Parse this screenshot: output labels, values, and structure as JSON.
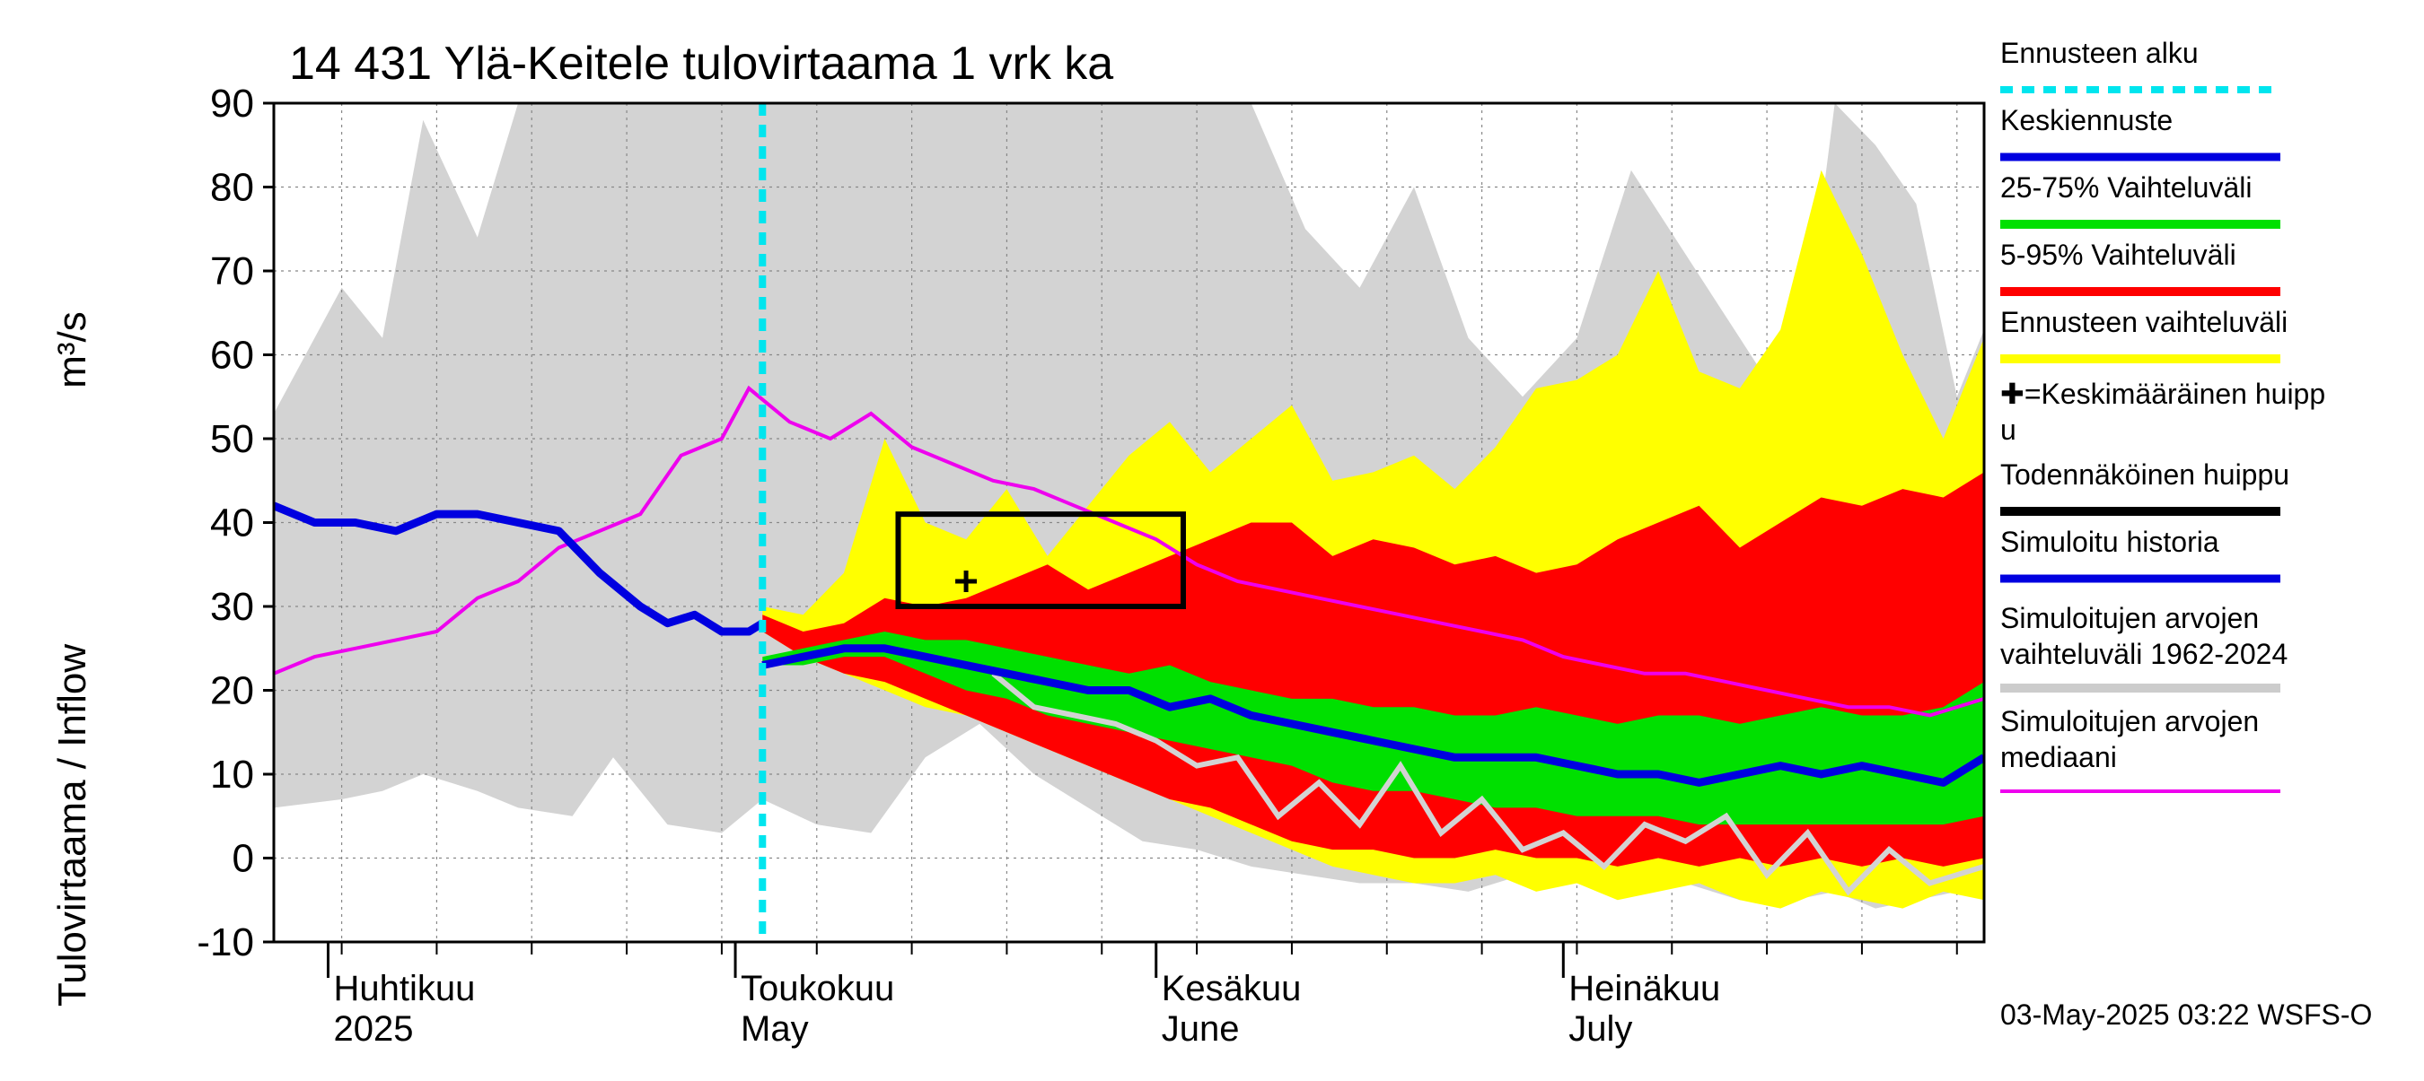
{
  "chart_data": {
    "type": "area",
    "title": "14 431 Ylä-Keitele tulovirtaama 1 vrk ka",
    "ylabel": "Tulovirtaama / Inflow",
    "yunit": "m³/s",
    "ylim": [
      -10,
      90
    ],
    "yticks": [
      -10,
      0,
      10,
      20,
      30,
      40,
      50,
      60,
      70,
      80,
      90
    ],
    "xlim": [
      "2025-03-28",
      "2025-08-01"
    ],
    "month_labels": [
      {
        "fi": "Huhtikuu",
        "en": "2025",
        "date": "2025-04-01"
      },
      {
        "fi": "Toukokuu",
        "en": "May",
        "date": "2025-05-01"
      },
      {
        "fi": "Kesäkuu",
        "en": "June",
        "date": "2025-06-01"
      },
      {
        "fi": "Heinäkuu",
        "en": "July",
        "date": "2025-07-01"
      }
    ],
    "forecast_start": "2025-05-03",
    "grid": true,
    "legend_placement": "right",
    "footer": "03-May-2025 03:22 WSFS-O",
    "legend": [
      {
        "label": "Ennusteen alku",
        "color": "#00e5ee",
        "style": "dashed"
      },
      {
        "label": "Keskiennuste",
        "color": "#0000e0",
        "style": "line"
      },
      {
        "label": "25-75% Vaihteluväli",
        "color": "#00e000",
        "style": "line"
      },
      {
        "label": "5-95% Vaihteluväli",
        "color": "#ff0000",
        "style": "line"
      },
      {
        "label": "Ennusteen vaihteluväli",
        "color": "#ffff00",
        "style": "line"
      },
      {
        "label": "✚=Keskimääräinen huipp",
        "label2": "u",
        "color": "#000000",
        "style": "none"
      },
      {
        "label": "Todennäköinen huippu",
        "color": "#000000",
        "style": "line"
      },
      {
        "label": "Simuloitu historia",
        "color": "#0000e0",
        "style": "line"
      },
      {
        "label": "Simuloitujen arvojen",
        "label2": "vaihteluväli 1962-2024",
        "color": "#cccccc",
        "style": "line"
      },
      {
        "label": "Simuloitujen arvojen",
        "label2": "mediaani",
        "color": "#ee00ee",
        "style": "line"
      }
    ],
    "colors": {
      "hist_range": "#d3d3d3",
      "forecast_range": "#ffff00",
      "p5_95": "#ff0000",
      "p25_75": "#00e000",
      "median_sim": "#ee00ee",
      "simulated_history": "#0000e0",
      "mean_forecast": "#0000e0",
      "forecast_start": "#00e5ee",
      "member_line": "#d3d3d3"
    },
    "series": [
      {
        "name": "Simuloitujen arvojen vaihteluväli 1962-2024",
        "x": [
          "2025-03-28",
          "2025-04-02",
          "2025-04-05",
          "2025-04-08",
          "2025-04-12",
          "2025-04-15",
          "2025-04-19",
          "2025-04-22",
          "2025-04-26",
          "2025-04-30",
          "2025-05-03",
          "2025-05-07",
          "2025-05-11",
          "2025-05-15",
          "2025-05-19",
          "2025-05-23",
          "2025-05-27",
          "2025-05-31",
          "2025-06-04",
          "2025-06-08",
          "2025-06-12",
          "2025-06-16",
          "2025-06-20",
          "2025-06-24",
          "2025-06-28",
          "2025-07-02",
          "2025-07-06",
          "2025-07-10",
          "2025-07-14",
          "2025-07-18",
          "2025-07-21",
          "2025-07-24",
          "2025-07-27",
          "2025-07-30",
          "2025-08-01"
        ],
        "low": [
          6,
          7,
          8,
          10,
          8,
          6,
          5,
          12,
          4,
          3,
          7,
          4,
          3,
          12,
          16,
          10,
          6,
          2,
          1,
          -1,
          -2,
          -3,
          -3,
          -4,
          -2,
          -3,
          -4,
          -3,
          -5,
          -5,
          -4,
          -6,
          -5,
          -4,
          -5
        ],
        "high": [
          53,
          68,
          62,
          88,
          74,
          90,
          90,
          90,
          90,
          90,
          90,
          90,
          90,
          90,
          90,
          90,
          90,
          90,
          90,
          90,
          75,
          68,
          80,
          62,
          55,
          62,
          82,
          72,
          62,
          52,
          90,
          85,
          78,
          55,
          63
        ]
      },
      {
        "name": "Ennusteen vaihteluväli",
        "x": [
          "2025-05-03",
          "2025-05-06",
          "2025-05-09",
          "2025-05-12",
          "2025-05-15",
          "2025-05-18",
          "2025-05-21",
          "2025-05-24",
          "2025-05-27",
          "2025-05-30",
          "2025-06-02",
          "2025-06-05",
          "2025-06-08",
          "2025-06-11",
          "2025-06-14",
          "2025-06-17",
          "2025-06-20",
          "2025-06-23",
          "2025-06-26",
          "2025-06-29",
          "2025-07-02",
          "2025-07-05",
          "2025-07-08",
          "2025-07-11",
          "2025-07-14",
          "2025-07-17",
          "2025-07-20",
          "2025-07-23",
          "2025-07-26",
          "2025-07-29",
          "2025-08-01"
        ],
        "low": [
          27,
          24,
          22,
          20,
          18,
          17,
          15,
          13,
          11,
          9,
          7,
          5,
          3,
          1,
          -1,
          -2,
          -3,
          -3,
          -2,
          -4,
          -3,
          -5,
          -4,
          -3,
          -5,
          -6,
          -4,
          -5,
          -6,
          -4,
          -5
        ],
        "high": [
          30,
          29,
          34,
          50,
          40,
          38,
          44,
          36,
          42,
          48,
          52,
          46,
          50,
          54,
          45,
          46,
          48,
          44,
          49,
          56,
          57,
          60,
          70,
          58,
          56,
          63,
          82,
          72,
          60,
          50,
          62
        ]
      },
      {
        "name": "5-95% Vaihteluväli",
        "x": [
          "2025-05-03",
          "2025-05-06",
          "2025-05-09",
          "2025-05-12",
          "2025-05-15",
          "2025-05-18",
          "2025-05-21",
          "2025-05-24",
          "2025-05-27",
          "2025-05-30",
          "2025-06-02",
          "2025-06-05",
          "2025-06-08",
          "2025-06-11",
          "2025-06-14",
          "2025-06-17",
          "2025-06-20",
          "2025-06-23",
          "2025-06-26",
          "2025-06-29",
          "2025-07-02",
          "2025-07-05",
          "2025-07-08",
          "2025-07-11",
          "2025-07-14",
          "2025-07-17",
          "2025-07-20",
          "2025-07-23",
          "2025-07-26",
          "2025-07-29",
          "2025-08-01"
        ],
        "low": [
          27,
          24,
          22,
          21,
          19,
          17,
          15,
          13,
          11,
          9,
          7,
          6,
          4,
          2,
          1,
          1,
          0,
          0,
          1,
          0,
          0,
          -1,
          0,
          -1,
          0,
          -1,
          0,
          -1,
          0,
          -1,
          0
        ],
        "high": [
          29,
          27,
          28,
          31,
          30,
          31,
          33,
          35,
          32,
          34,
          36,
          38,
          40,
          40,
          36,
          38,
          37,
          35,
          36,
          34,
          35,
          38,
          40,
          42,
          37,
          40,
          43,
          42,
          44,
          43,
          46
        ]
      },
      {
        "name": "25-75% Vaihteluväli",
        "x": [
          "2025-05-03",
          "2025-05-06",
          "2025-05-09",
          "2025-05-12",
          "2025-05-15",
          "2025-05-18",
          "2025-05-21",
          "2025-05-24",
          "2025-05-27",
          "2025-05-30",
          "2025-06-02",
          "2025-06-05",
          "2025-06-08",
          "2025-06-11",
          "2025-06-14",
          "2025-06-17",
          "2025-06-20",
          "2025-06-23",
          "2025-06-26",
          "2025-06-29",
          "2025-07-02",
          "2025-07-05",
          "2025-07-08",
          "2025-07-11",
          "2025-07-14",
          "2025-07-17",
          "2025-07-20",
          "2025-07-23",
          "2025-07-26",
          "2025-07-29",
          "2025-08-01"
        ],
        "low": [
          23,
          23,
          24,
          24,
          22,
          20,
          19,
          17,
          16,
          15,
          14,
          13,
          12,
          11,
          9,
          8,
          8,
          7,
          6,
          6,
          5,
          5,
          5,
          4,
          4,
          4,
          4,
          4,
          4,
          4,
          5
        ],
        "high": [
          24,
          25,
          26,
          27,
          26,
          26,
          25,
          24,
          23,
          22,
          23,
          21,
          20,
          19,
          19,
          18,
          18,
          17,
          17,
          18,
          17,
          16,
          17,
          17,
          16,
          17,
          18,
          17,
          17,
          18,
          21
        ]
      },
      {
        "name": "Simuloitujen arvojen mediaani",
        "x": [
          "2025-03-28",
          "2025-03-31",
          "2025-04-03",
          "2025-04-06",
          "2025-04-09",
          "2025-04-12",
          "2025-04-15",
          "2025-04-18",
          "2025-04-21",
          "2025-04-24",
          "2025-04-27",
          "2025-04-30",
          "2025-05-02",
          "2025-05-05",
          "2025-05-08",
          "2025-05-11",
          "2025-05-14",
          "2025-05-17",
          "2025-05-20",
          "2025-05-23",
          "2025-05-26",
          "2025-05-29",
          "2025-06-01",
          "2025-06-04",
          "2025-06-07",
          "2025-06-10",
          "2025-06-13",
          "2025-06-16",
          "2025-06-19",
          "2025-06-22",
          "2025-06-25",
          "2025-06-28",
          "2025-07-01",
          "2025-07-04",
          "2025-07-07",
          "2025-07-10",
          "2025-07-13",
          "2025-07-16",
          "2025-07-19",
          "2025-07-22",
          "2025-07-25",
          "2025-07-28",
          "2025-08-01"
        ],
        "y": [
          22,
          24,
          25,
          26,
          27,
          31,
          33,
          37,
          39,
          41,
          48,
          50,
          56,
          52,
          50,
          53,
          49,
          47,
          45,
          44,
          42,
          40,
          38,
          35,
          33,
          32,
          31,
          30,
          29,
          28,
          27,
          26,
          24,
          23,
          22,
          22,
          21,
          20,
          19,
          18,
          18,
          17,
          19
        ]
      },
      {
        "name": "Simuloitu historia",
        "x": [
          "2025-03-28",
          "2025-03-31",
          "2025-04-03",
          "2025-04-06",
          "2025-04-09",
          "2025-04-12",
          "2025-04-15",
          "2025-04-18",
          "2025-04-21",
          "2025-04-24",
          "2025-04-26",
          "2025-04-28",
          "2025-04-30",
          "2025-05-02",
          "2025-05-03"
        ],
        "y": [
          42,
          40,
          40,
          39,
          41,
          41,
          40,
          39,
          34,
          30,
          28,
          29,
          27,
          27,
          28
        ]
      },
      {
        "name": "Keskiennuste",
        "x": [
          "2025-05-03",
          "2025-05-06",
          "2025-05-09",
          "2025-05-12",
          "2025-05-15",
          "2025-05-18",
          "2025-05-21",
          "2025-05-24",
          "2025-05-27",
          "2025-05-30",
          "2025-06-02",
          "2025-06-05",
          "2025-06-08",
          "2025-06-11",
          "2025-06-14",
          "2025-06-17",
          "2025-06-20",
          "2025-06-23",
          "2025-06-26",
          "2025-06-29",
          "2025-07-02",
          "2025-07-05",
          "2025-07-08",
          "2025-07-11",
          "2025-07-14",
          "2025-07-17",
          "2025-07-20",
          "2025-07-23",
          "2025-07-26",
          "2025-07-29",
          "2025-08-01"
        ],
        "y": [
          23,
          24,
          25,
          25,
          24,
          23,
          22,
          21,
          20,
          20,
          18,
          19,
          17,
          16,
          15,
          14,
          13,
          12,
          12,
          12,
          11,
          10,
          10,
          9,
          10,
          11,
          10,
          11,
          10,
          9,
          12
        ]
      },
      {
        "name": "member",
        "x": [
          "2025-05-20",
          "2025-05-23",
          "2025-05-26",
          "2025-05-29",
          "2025-06-01",
          "2025-06-04",
          "2025-06-07",
          "2025-06-10",
          "2025-06-13",
          "2025-06-16",
          "2025-06-19",
          "2025-06-22",
          "2025-06-25",
          "2025-06-28",
          "2025-07-01",
          "2025-07-04",
          "2025-07-07",
          "2025-07-10",
          "2025-07-13",
          "2025-07-16",
          "2025-07-19",
          "2025-07-22",
          "2025-07-25",
          "2025-07-28",
          "2025-08-01"
        ],
        "y": [
          22,
          18,
          17,
          16,
          14,
          11,
          12,
          5,
          9,
          4,
          11,
          3,
          7,
          1,
          3,
          -1,
          4,
          2,
          5,
          -2,
          3,
          -4,
          1,
          -3,
          -1
        ]
      }
    ],
    "probable_peak_box": {
      "x0": "2025-05-13",
      "x1": "2025-06-03",
      "y0": 30,
      "y1": 41
    },
    "mean_peak_marker": {
      "x": "2025-05-18",
      "y": 33
    }
  }
}
